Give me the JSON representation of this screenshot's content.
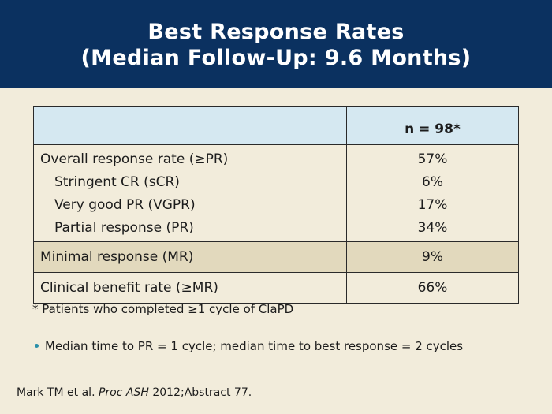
{
  "title": {
    "line1": "Best Response Rates",
    "line2": "(Median Follow-Up: 9.6 Months)"
  },
  "table": {
    "header": {
      "label": "",
      "value": "n = 98*"
    },
    "group_rows": [
      {
        "label": "Overall response rate (≥PR)",
        "value": "57%"
      },
      {
        "label": "Stringent CR (sCR)",
        "value": "6%"
      },
      {
        "label": "Very good PR (VGPR)",
        "value": "17%"
      },
      {
        "label": "Partial response (PR)",
        "value": "34%"
      }
    ],
    "minimal_response": {
      "label": "Minimal response (MR)",
      "value": "9%"
    },
    "clinical_benefit": {
      "label": "Clinical benefit rate (≥MR)",
      "value": "66%"
    }
  },
  "footnote": "* Patients who completed ≥1 cycle of ClaPD",
  "bullet": "Median time to PR = 1 cycle; median time to best response = 2 cycles",
  "citation": {
    "authors": "Mark TM et al.",
    "journal": "Proc ASH",
    "rest": "2012;Abstract 77."
  },
  "colors": {
    "title_bg": "#0b3160",
    "page_bg": "#f2ecdb",
    "header_bg": "#d5e8f1",
    "highlight_row_bg": "#e2d9bd",
    "bullet": "#2a8fa8"
  }
}
